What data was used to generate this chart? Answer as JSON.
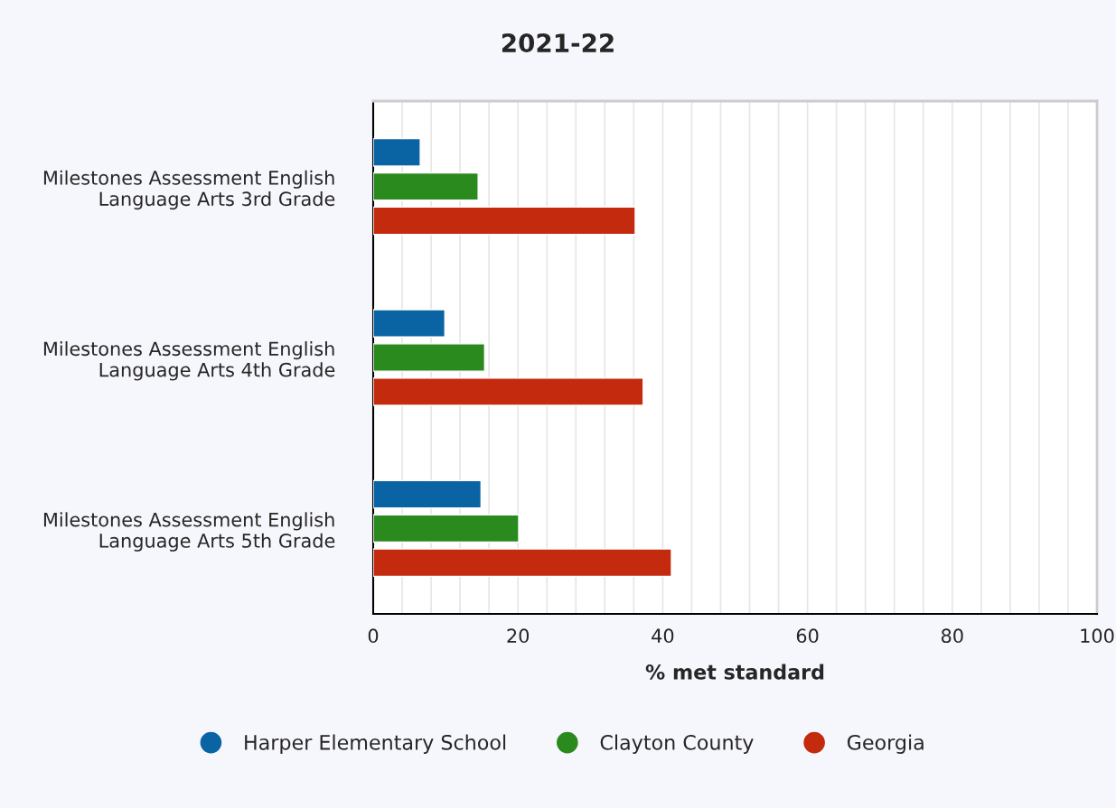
{
  "chart_data": {
    "type": "bar",
    "orientation": "horizontal",
    "title": "2021-22",
    "xlabel": "% met standard",
    "categories": [
      "Milestones Assessment English\nLanguage Arts 3rd Grade",
      "Milestones Assessment English\nLanguage Arts 4th Grade",
      "Milestones Assessment English\nLanguage Arts 5th Grade"
    ],
    "series": [
      {
        "name": "Harper Elementary School",
        "color": "#0a64a4",
        "values": [
          6.5,
          9.9,
          14.9
        ]
      },
      {
        "name": "Clayton County",
        "color": "#2a8a1e",
        "values": [
          14.5,
          15.4,
          20.1
        ]
      },
      {
        "name": "Georgia",
        "color": "#c42a0e",
        "values": [
          36.2,
          37.3,
          41.2
        ]
      }
    ],
    "xlim": [
      0,
      100
    ],
    "xticks": [
      0,
      {
        "value": 4,
        "label": null
      },
      {
        "value": 8,
        "label": null
      },
      {
        "value": 12,
        "label": null
      },
      {
        "value": 16,
        "label": null
      },
      20,
      {
        "value": 24,
        "label": null
      },
      {
        "value": 28,
        "label": null
      },
      {
        "value": 32,
        "label": null
      },
      {
        "value": 36,
        "label": null
      },
      40,
      {
        "value": 44,
        "label": null
      },
      {
        "value": 48,
        "label": null
      },
      {
        "value": 52,
        "label": null
      },
      {
        "value": 56,
        "label": null
      },
      60,
      {
        "value": 64,
        "label": null
      },
      {
        "value": 68,
        "label": null
      },
      {
        "value": 72,
        "label": null
      },
      {
        "value": 76,
        "label": null
      },
      80,
      {
        "value": 84,
        "label": null
      },
      {
        "value": 88,
        "label": null
      },
      {
        "value": 92,
        "label": null
      },
      {
        "value": 96,
        "label": null
      },
      100
    ],
    "grid": "x",
    "legend": "bottom"
  }
}
